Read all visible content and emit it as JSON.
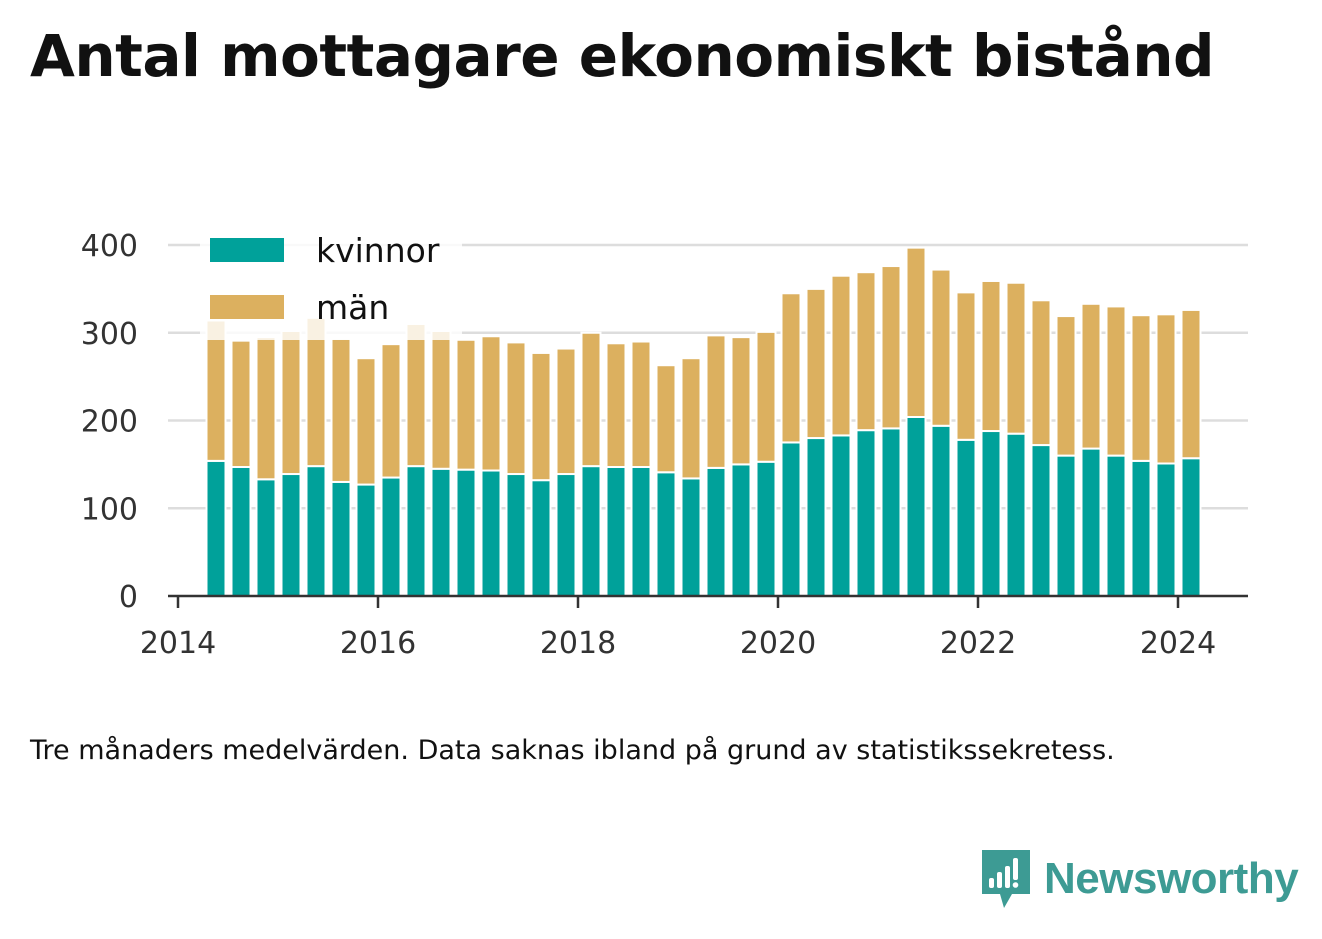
{
  "title": "Antal mottagare ekonomiskt bistånd",
  "footnote": "Tre månaders medelvärden. Data saknas ibland på grund av statistikssekretess.",
  "brand": {
    "name": "Newsworthy",
    "icon": "newsworthy-logo-icon",
    "color": "#3d9b94"
  },
  "chart_data": {
    "type": "bar",
    "stacked": true,
    "x_start_year": 2014.38,
    "x_step_years": 0.25,
    "xlim": [
      2013.9,
      2024.7
    ],
    "xticks": [
      2014,
      2016,
      2018,
      2020,
      2022,
      2024
    ],
    "ylim": [
      0,
      400
    ],
    "yticks": [
      0,
      100,
      200,
      300,
      400
    ],
    "grid": true,
    "legend_position": "top-left",
    "series": [
      {
        "name": "kvinnor",
        "color": "#00a19a",
        "values": [
          154,
          147,
          133,
          139,
          148,
          130,
          127,
          135,
          148,
          145,
          144,
          143,
          139,
          132,
          139,
          148,
          147,
          147,
          141,
          134,
          146,
          150,
          153,
          175,
          180,
          183,
          189,
          191,
          204,
          194,
          178,
          188,
          185,
          172,
          160,
          168,
          160,
          154,
          151,
          157
        ]
      },
      {
        "name": "män",
        "color": "#dcb05f",
        "values": [
          160,
          144,
          162,
          163,
          169,
          163,
          144,
          152,
          162,
          157,
          148,
          153,
          150,
          145,
          143,
          152,
          141,
          143,
          122,
          137,
          151,
          145,
          148,
          170,
          170,
          182,
          180,
          185,
          193,
          178,
          168,
          171,
          172,
          165,
          159,
          165,
          170,
          166,
          170,
          169
        ]
      }
    ]
  }
}
